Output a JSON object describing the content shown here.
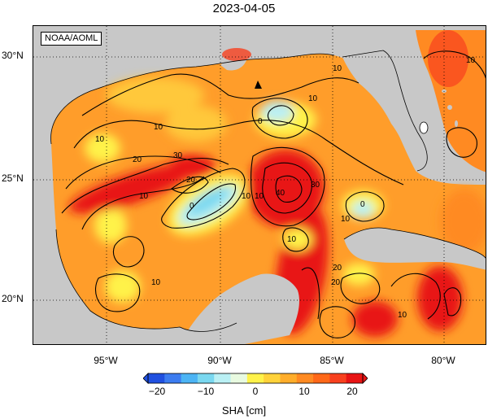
{
  "title": "2023-04-05",
  "attribution": "NOAA/AOML",
  "map": {
    "lat_labels": [
      "30°N",
      "25°N",
      "20°N"
    ],
    "lon_labels": [
      "95°W",
      "90°W",
      "85°W",
      "80°W"
    ],
    "contour_labels": [
      "10",
      "10",
      "10",
      "10",
      "20",
      "30",
      "20",
      "10",
      "0",
      "10",
      "0",
      "10",
      "40",
      "30",
      "20",
      "10",
      "0",
      "10",
      "20",
      "10",
      "10",
      "10"
    ],
    "marker": "triangle-station-icon"
  },
  "colorbar": {
    "ticks": [
      "−20",
      "−10",
      "0",
      "10",
      "20"
    ],
    "range": [
      -20,
      20
    ],
    "colors": [
      "#2050e0",
      "#3c7cf0",
      "#4cb4f4",
      "#7ad8f0",
      "#baf0f4",
      "#e8fae0",
      "#fff24a",
      "#ffd23a",
      "#ffad2a",
      "#ff8a22",
      "#ff6818",
      "#f8401e",
      "#e81414"
    ],
    "unit_label": "SHA [cm]"
  },
  "land_color": "#c8c8c8"
}
